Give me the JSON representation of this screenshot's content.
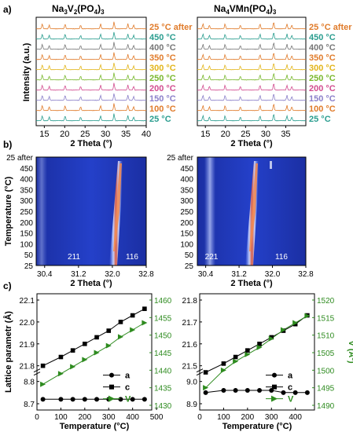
{
  "panel_labels": [
    "a)",
    "b)",
    "c)"
  ],
  "colors": {
    "accent_green": "#2e8b1f",
    "series": [
      "#2a9d8f",
      "#e07b2a",
      "#8a7fc9",
      "#d24c8f",
      "#7ab82e",
      "#e2b51a",
      "#e07b2a",
      "#777777",
      "#2a9d8f",
      "#e07b2a"
    ]
  },
  "chart_data": [
    {
      "type": "line",
      "title": "Na3V2(PO4)3",
      "title_html_parts": [
        "Na",
        "3",
        "V",
        "2",
        "(PO",
        "4",
        ")",
        "3"
      ],
      "xlabel": "2 Theta (°)",
      "ylabel": "Intensity (a.u.)",
      "xlim": [
        13,
        40
      ],
      "xticks": [
        "15",
        "20",
        "25",
        "30",
        "35",
        "40"
      ],
      "peaks_2theta": [
        14.5,
        16.2,
        20.1,
        23.9,
        28.8,
        32.1,
        35.5,
        36.9
      ],
      "series": [
        {
          "name": "25 °C"
        },
        {
          "name": "100 °C"
        },
        {
          "name": "150 °C"
        },
        {
          "name": "200 °C"
        },
        {
          "name": "250 °C"
        },
        {
          "name": "300 °C"
        },
        {
          "name": "350 °C"
        },
        {
          "name": "400 °C"
        },
        {
          "name": "450 °C"
        },
        {
          "name": "25 °C after"
        }
      ]
    },
    {
      "type": "line",
      "title": "Na4VMn(PO4)3",
      "title_html_parts": [
        "Na",
        "4",
        "VMn(PO",
        "4",
        ")",
        "3"
      ],
      "xlabel": "2 Theta (°)",
      "xlim": [
        13,
        40
      ],
      "xticks": [
        "15",
        "20",
        "25",
        "30",
        "35"
      ],
      "peaks_2theta": [
        14.4,
        16.0,
        19.9,
        23.7,
        28.6,
        32.0,
        35.3,
        36.5
      ],
      "series": [
        {
          "name": "25 °C"
        },
        {
          "name": "100 °C"
        },
        {
          "name": "150 °C"
        },
        {
          "name": "200 °C"
        },
        {
          "name": "250 °C"
        },
        {
          "name": "300 °C"
        },
        {
          "name": "350 °C"
        },
        {
          "name": "400 °C"
        },
        {
          "name": "450 °C"
        },
        {
          "name": "25 °C after"
        }
      ]
    },
    {
      "type": "heatmap",
      "xlabel": "2 Theta (°)",
      "ylabel": "Temperature (°C)",
      "xlim": [
        30.2,
        32.8
      ],
      "xticks": [
        "30.4",
        "31.2",
        "32.0",
        "32.8"
      ],
      "yticks": [
        "25 after",
        "450",
        "400",
        "350",
        "300",
        "250",
        "200",
        "150",
        "100",
        "50",
        "25"
      ],
      "annotations": [
        "211",
        "116"
      ]
    },
    {
      "type": "heatmap",
      "xlabel": "2 Theta (°)",
      "xlim": [
        30.2,
        32.8
      ],
      "xticks": [
        "30.4",
        "31.2",
        "32.0",
        "32.8"
      ],
      "yticks": [
        "25 after",
        "450",
        "400",
        "350",
        "300",
        "250",
        "200",
        "150",
        "100",
        "50",
        "25"
      ],
      "annotations": [
        "221",
        "116"
      ]
    },
    {
      "type": "line",
      "xlabel": "Temperature (°C)",
      "ylabel": "Lattice parametr (Å)",
      "xlim": [
        0,
        480
      ],
      "xticks": [
        "0",
        "100",
        "200",
        "300",
        "400",
        "500"
      ],
      "yticks_left": [
        "8.7",
        "8.8",
        "21.8",
        "21.9",
        "22.0",
        "22.1"
      ],
      "yticks_right": [
        "1430",
        "1435",
        "1440",
        "1445",
        "1450",
        "1455",
        "1460"
      ],
      "legend": [
        "a",
        "c",
        "V"
      ],
      "series": [
        {
          "name": "a",
          "x": [
            25,
            100,
            150,
            200,
            250,
            300,
            350,
            400,
            450
          ],
          "y": [
            8.72,
            8.72,
            8.72,
            8.72,
            8.72,
            8.72,
            8.72,
            8.72,
            8.72
          ]
        },
        {
          "name": "c",
          "x": [
            25,
            100,
            150,
            200,
            250,
            300,
            350,
            400,
            450
          ],
          "y": [
            21.8,
            21.84,
            21.87,
            21.9,
            21.93,
            21.96,
            22.0,
            22.03,
            22.06
          ]
        },
        {
          "name": "V",
          "x": [
            25,
            100,
            150,
            200,
            250,
            300,
            350,
            400,
            450
          ],
          "y": [
            1436.0,
            1439.0,
            1441.0,
            1443.0,
            1445.0,
            1447.0,
            1449.5,
            1451.5,
            1453.5
          ]
        }
      ]
    },
    {
      "type": "line",
      "xlabel": "Temperature (°C)",
      "ylabel": "V (Å³)",
      "xlim": [
        0,
        480
      ],
      "xticks": [
        "0",
        "100",
        "200",
        "300",
        "400"
      ],
      "yticks_left": [
        "8.9",
        "9.0",
        "21.5",
        "21.6",
        "21.7",
        "21.8"
      ],
      "yticks_right": [
        "1490",
        "1495",
        "1500",
        "1505",
        "1510",
        "1515",
        "1520"
      ],
      "legend": [
        "a",
        "c",
        "V"
      ],
      "series": [
        {
          "name": "a",
          "x": [
            25,
            100,
            150,
            200,
            250,
            300,
            350,
            400,
            450
          ],
          "y": [
            8.95,
            8.96,
            8.96,
            8.96,
            8.96,
            8.96,
            8.95,
            8.95,
            8.95
          ]
        },
        {
          "name": "c",
          "x": [
            25,
            100,
            150,
            200,
            250,
            300,
            350,
            400,
            450
          ],
          "y": [
            21.47,
            21.51,
            21.54,
            21.57,
            21.6,
            21.63,
            21.66,
            21.69,
            21.73
          ]
        },
        {
          "name": "V",
          "x": [
            25,
            100,
            150,
            200,
            250,
            300,
            350,
            400,
            450
          ],
          "y": [
            1495.0,
            1500.0,
            1502.5,
            1504.5,
            1506.5,
            1509.0,
            1511.5,
            1513.5,
            1515.5
          ]
        }
      ]
    }
  ]
}
